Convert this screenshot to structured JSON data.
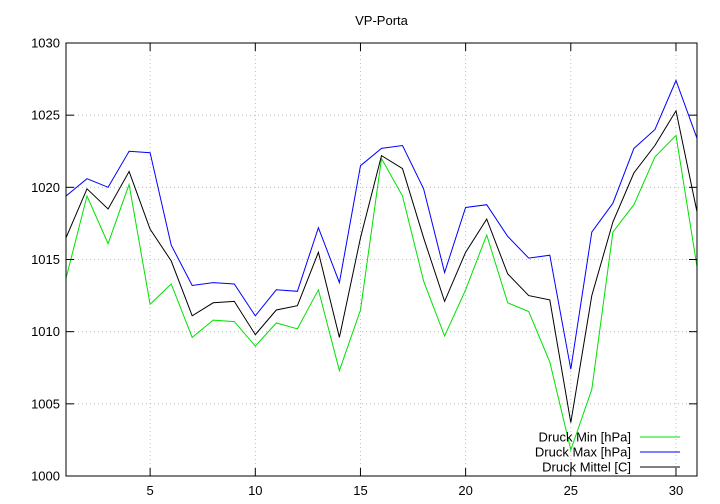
{
  "chart_data": {
    "type": "line",
    "title": "VP-Porta",
    "xlabel": "",
    "ylabel": "",
    "xlim": [
      1,
      31
    ],
    "ylim": [
      1000,
      1030
    ],
    "xticks": [
      5,
      10,
      15,
      20,
      25,
      30
    ],
    "yticks": [
      1000,
      1005,
      1010,
      1015,
      1020,
      1025,
      1030
    ],
    "grid": true,
    "legend_position": "bottom-right",
    "x": [
      1,
      2,
      3,
      4,
      5,
      6,
      7,
      8,
      9,
      10,
      11,
      12,
      13,
      14,
      15,
      16,
      17,
      18,
      19,
      20,
      21,
      22,
      23,
      24,
      25,
      26,
      27,
      28,
      29,
      30,
      31
    ],
    "series": [
      {
        "name": "Druck Min [hPa]",
        "color": "#00e000",
        "values": [
          1013.7,
          1019.4,
          1016.1,
          1020.2,
          1011.9,
          1013.3,
          1009.6,
          1010.8,
          1010.7,
          1009.0,
          1010.6,
          1010.2,
          1012.9,
          1007.3,
          1011.5,
          1022.0,
          1019.4,
          1013.5,
          1009.7,
          1012.9,
          1016.7,
          1012.0,
          1011.4,
          1007.9,
          1001.8,
          1006.0,
          1016.9,
          1018.8,
          1022.1,
          1023.6,
          1014.5
        ]
      },
      {
        "name": "Druck Max [hPa]",
        "color": "#0000ff",
        "values": [
          1019.4,
          1020.6,
          1020.0,
          1022.5,
          1022.4,
          1016.0,
          1013.2,
          1013.4,
          1013.3,
          1011.1,
          1012.9,
          1012.8,
          1017.2,
          1013.4,
          1021.5,
          1022.7,
          1022.9,
          1019.9,
          1014.1,
          1018.6,
          1018.8,
          1016.6,
          1015.1,
          1015.3,
          1007.4,
          1016.9,
          1018.9,
          1022.7,
          1024.0,
          1027.4,
          1023.4
        ]
      },
      {
        "name": "Druck Mittel [C]",
        "color": "#000000",
        "values": [
          1016.5,
          1019.9,
          1018.5,
          1021.1,
          1017.1,
          1014.9,
          1011.1,
          1012.0,
          1012.1,
          1009.8,
          1011.5,
          1011.8,
          1015.5,
          1009.6,
          1016.5,
          1022.2,
          1021.3,
          1016.5,
          1012.1,
          1015.5,
          1017.8,
          1014.0,
          1012.5,
          1012.2,
          1003.7,
          1012.5,
          1017.6,
          1021.0,
          1022.9,
          1025.3,
          1018.3
        ]
      }
    ]
  }
}
